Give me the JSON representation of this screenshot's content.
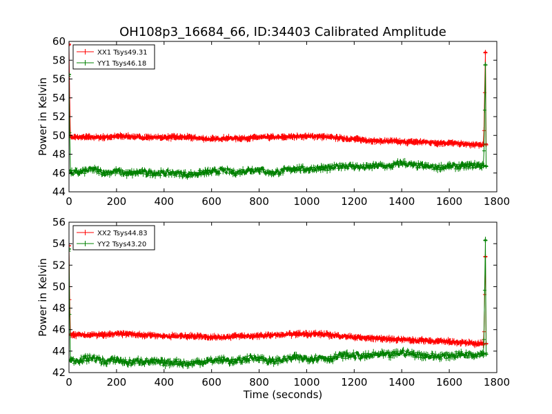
{
  "chart_data": [
    {
      "type": "line",
      "title": "OH108p3_16684_66, ID:34403 Calibrated Amplitude",
      "xlabel": "",
      "ylabel": "Power in Kelvin",
      "xlim": [
        0,
        1800
      ],
      "ylim": [
        44,
        60
      ],
      "xticks": [
        "0",
        "200",
        "400",
        "600",
        "800",
        "1000",
        "1200",
        "1400",
        "1600",
        "1800"
      ],
      "yticks": [
        "44",
        "46",
        "48",
        "50",
        "52",
        "54",
        "56",
        "58",
        "60"
      ],
      "legend_position": "top-left",
      "series": [
        {
          "name": "XX1 Tsys49.31",
          "color": "#ff0000",
          "x": [
            0,
            5,
            10,
            50,
            100,
            150,
            200,
            250,
            300,
            350,
            400,
            450,
            500,
            550,
            600,
            650,
            700,
            750,
            800,
            850,
            900,
            950,
            1000,
            1050,
            1100,
            1150,
            1200,
            1250,
            1300,
            1350,
            1400,
            1450,
            1500,
            1550,
            1600,
            1650,
            1700,
            1745,
            1752,
            1755
          ],
          "y": [
            59.7,
            50.0,
            49.8,
            49.8,
            49.8,
            49.8,
            49.9,
            49.9,
            49.8,
            49.8,
            49.8,
            49.8,
            49.8,
            49.7,
            49.6,
            49.7,
            49.7,
            49.7,
            49.8,
            49.8,
            49.8,
            49.9,
            49.9,
            49.9,
            49.8,
            49.7,
            49.6,
            49.5,
            49.4,
            49.4,
            49.3,
            49.3,
            49.3,
            49.2,
            49.2,
            49.1,
            49.0,
            49.0,
            58.8,
            49.0
          ]
        },
        {
          "name": "YY1 Tsys46.18",
          "color": "#008000",
          "x": [
            0,
            5,
            10,
            50,
            100,
            150,
            200,
            250,
            300,
            350,
            400,
            450,
            500,
            550,
            600,
            650,
            700,
            750,
            800,
            850,
            900,
            950,
            1000,
            1050,
            1100,
            1150,
            1200,
            1250,
            1300,
            1350,
            1400,
            1450,
            1500,
            1550,
            1600,
            1650,
            1700,
            1745,
            1752,
            1755
          ],
          "y": [
            56.5,
            46.2,
            46.0,
            46.1,
            46.4,
            46.0,
            46.2,
            45.9,
            46.1,
            46.0,
            46.0,
            46.0,
            45.8,
            46.0,
            46.1,
            46.3,
            46.0,
            46.3,
            46.4,
            46.0,
            46.2,
            46.5,
            46.4,
            46.5,
            46.5,
            46.8,
            46.7,
            46.6,
            46.8,
            46.7,
            47.1,
            46.8,
            46.7,
            46.6,
            46.7,
            46.7,
            46.8,
            46.8,
            57.5,
            46.7
          ]
        }
      ]
    },
    {
      "type": "line",
      "title": "",
      "xlabel": "Time (seconds)",
      "ylabel": "Power in Kelvin",
      "xlim": [
        0,
        1800
      ],
      "ylim": [
        42,
        56
      ],
      "xticks": [
        "0",
        "200",
        "400",
        "600",
        "800",
        "1000",
        "1200",
        "1400",
        "1600",
        "1800"
      ],
      "yticks": [
        "42",
        "44",
        "46",
        "48",
        "50",
        "52",
        "54",
        "56"
      ],
      "legend_position": "top-left",
      "series": [
        {
          "name": "XX2 Tsys44.83",
          "color": "#ff0000",
          "x": [
            0,
            5,
            10,
            50,
            100,
            150,
            200,
            250,
            300,
            350,
            400,
            450,
            500,
            550,
            600,
            650,
            700,
            750,
            800,
            850,
            900,
            950,
            1000,
            1050,
            1100,
            1150,
            1200,
            1250,
            1300,
            1350,
            1400,
            1450,
            1500,
            1550,
            1600,
            1650,
            1700,
            1745,
            1752,
            1755
          ],
          "y": [
            53.8,
            45.6,
            45.5,
            45.5,
            45.5,
            45.5,
            45.6,
            45.6,
            45.5,
            45.5,
            45.4,
            45.4,
            45.4,
            45.4,
            45.3,
            45.3,
            45.4,
            45.4,
            45.4,
            45.5,
            45.5,
            45.6,
            45.6,
            45.6,
            45.5,
            45.4,
            45.3,
            45.2,
            45.2,
            45.1,
            45.1,
            45.0,
            45.0,
            44.9,
            44.9,
            44.8,
            44.7,
            44.7,
            52.8,
            44.7
          ]
        },
        {
          "name": "YY2 Tsys43.20",
          "color": "#008000",
          "x": [
            0,
            5,
            10,
            50,
            100,
            150,
            200,
            250,
            300,
            350,
            400,
            450,
            500,
            550,
            600,
            650,
            700,
            750,
            800,
            850,
            900,
            950,
            1000,
            1050,
            1100,
            1150,
            1200,
            1250,
            1300,
            1350,
            1400,
            1450,
            1500,
            1550,
            1600,
            1650,
            1700,
            1745,
            1752,
            1755
          ],
          "y": [
            53.5,
            43.2,
            43.1,
            43.2,
            43.4,
            43.0,
            43.2,
            42.9,
            43.1,
            43.0,
            42.9,
            43.0,
            42.8,
            43.0,
            43.1,
            43.2,
            43.0,
            43.3,
            43.4,
            43.0,
            43.2,
            43.4,
            43.3,
            43.4,
            43.3,
            43.6,
            43.6,
            43.5,
            43.7,
            43.6,
            43.9,
            43.7,
            43.6,
            43.5,
            43.6,
            43.7,
            43.7,
            43.8,
            54.3,
            43.7
          ]
        }
      ]
    }
  ]
}
